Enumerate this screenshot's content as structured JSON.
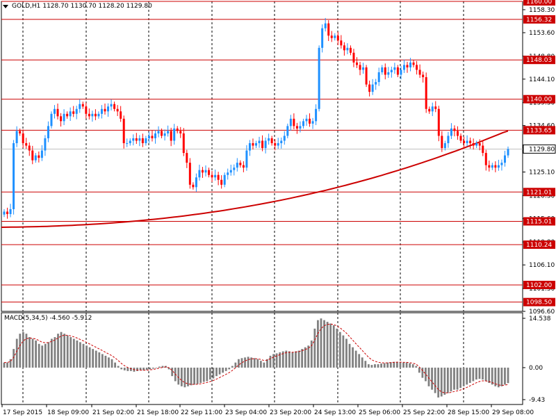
{
  "window": {
    "symbol_label": "GOLD,H1",
    "ohlc_text": "1128.70 1130.70 1128.20 1129.80",
    "macd_label": "MACD(5,34,5)",
    "macd_values_text": "-4.560 -5.912"
  },
  "chart_data": {
    "type": "candlestick",
    "title": "GOLD,H1 1128.70 1130.70 1128.20 1129.80",
    "price_axis": {
      "ylim": [
        1096.6,
        1160.0
      ],
      "ticks": [
        "1158.30",
        "1153.60",
        "1148.80",
        "1144.10",
        "1139.30",
        "1134.60",
        "1129.80",
        "1125.10",
        "1120.30",
        "1115.60",
        "1110.80",
        "1106.10",
        "1101.30",
        "1096.60"
      ]
    },
    "x_labels": [
      "17 Sep 2015",
      "18 Sep 09:00",
      "21 Sep 02:00",
      "21 Sep 18:00",
      "22 Sep 11:00",
      "23 Sep 04:00",
      "23 Sep 20:00",
      "24 Sep 13:00",
      "25 Sep 06:00",
      "25 Sep 22:00",
      "28 Sep 15:00",
      "29 Sep 08:00"
    ],
    "horizontal_levels": [
      {
        "label": "1160.00",
        "value": 1160.0
      },
      {
        "label": "1156.32",
        "value": 1156.32
      },
      {
        "label": "1148.03",
        "value": 1148.03
      },
      {
        "label": "1140.00",
        "value": 1140.0
      },
      {
        "label": "1133.65",
        "value": 1133.65
      },
      {
        "label": "1121.01",
        "value": 1121.01
      },
      {
        "label": "1115.01",
        "value": 1115.01
      },
      {
        "label": "1110.24",
        "value": 1110.24
      },
      {
        "label": "1102.00",
        "value": 1102.0
      },
      {
        "label": "1098.50",
        "value": 1098.5
      }
    ],
    "current_price": {
      "label": "1129.80",
      "value": 1129.8
    },
    "closes": [
      1117.0,
      1116.5,
      1117.5,
      1131.0,
      1133.5,
      1133.0,
      1131.0,
      1130.5,
      1129.5,
      1127.5,
      1128.5,
      1128.0,
      1129.5,
      1132.0,
      1134.5,
      1137.0,
      1138.0,
      1136.5,
      1135.5,
      1137.0,
      1136.5,
      1137.5,
      1137.0,
      1138.0,
      1139.0,
      1138.5,
      1137.0,
      1136.5,
      1137.0,
      1136.5,
      1137.0,
      1138.0,
      1137.5,
      1138.5,
      1139.0,
      1138.0,
      1137.5,
      1136.0,
      1131.0,
      1131.0,
      1131.5,
      1132.0,
      1131.5,
      1132.0,
      1131.0,
      1132.0,
      1132.5,
      1132.0,
      1133.0,
      1133.5,
      1132.5,
      1133.0,
      1133.5,
      1131.5,
      1134.0,
      1133.5,
      1133.0,
      1129.0,
      1127.0,
      1122.5,
      1122.0,
      1124.0,
      1125.5,
      1125.0,
      1125.5,
      1124.5,
      1124.0,
      1124.5,
      1123.5,
      1122.5,
      1124.5,
      1125.0,
      1125.5,
      1126.0,
      1127.0,
      1126.5,
      1126.0,
      1129.5,
      1131.0,
      1130.5,
      1131.0,
      1131.5,
      1130.0,
      1131.5,
      1132.0,
      1131.0,
      1130.5,
      1131.0,
      1131.5,
      1132.5,
      1134.5,
      1136.0,
      1134.5,
      1134.0,
      1134.5,
      1135.5,
      1136.0,
      1135.0,
      1135.5,
      1138.0,
      1150.5,
      1154.5,
      1155.5,
      1153.0,
      1152.5,
      1153.0,
      1152.0,
      1151.0,
      1150.0,
      1150.5,
      1149.5,
      1147.5,
      1147.0,
      1146.0,
      1146.5,
      1143.0,
      1141.5,
      1143.0,
      1143.5,
      1145.5,
      1146.5,
      1145.0,
      1145.5,
      1146.0,
      1146.5,
      1145.0,
      1146.0,
      1147.0,
      1146.5,
      1147.5,
      1147.0,
      1146.0,
      1145.0,
      1144.5,
      1138.0,
      1137.5,
      1138.5,
      1138.0,
      1132.5,
      1130.0,
      1131.0,
      1132.5,
      1134.0,
      1133.5,
      1132.5,
      1131.5,
      1131.0,
      1131.5,
      1131.0,
      1130.5,
      1131.0,
      1130.5,
      1129.0,
      1126.5,
      1126.0,
      1126.5,
      1126.0,
      1126.5,
      1127.0,
      1128.5,
      1129.8
    ],
    "moving_average": {
      "start_value": 1113.8,
      "end_value": 1133.5
    },
    "macd_indicator": {
      "ylim": [
        -9.43,
        14.538
      ],
      "ticks": [
        "14.538",
        "0.00",
        "-9.43"
      ],
      "histogram": [
        1.5,
        1.5,
        2.5,
        5.5,
        8.5,
        10.0,
        10.5,
        10.0,
        9.0,
        8.5,
        8.0,
        7.0,
        6.5,
        7.0,
        7.5,
        8.5,
        9.0,
        10.0,
        10.5,
        10.0,
        9.5,
        9.0,
        8.5,
        8.0,
        7.5,
        7.0,
        6.5,
        6.0,
        5.5,
        5.0,
        4.5,
        4.0,
        3.5,
        3.0,
        2.5,
        1.5,
        0.5,
        -0.5,
        -0.8,
        -1.0,
        -1.0,
        -1.2,
        -1.0,
        -0.8,
        -0.8,
        -0.7,
        -0.5,
        -0.3,
        0.0,
        0.3,
        0.5,
        0.5,
        -0.5,
        -2.5,
        -4.0,
        -5.0,
        -5.5,
        -5.8,
        -5.5,
        -5.2,
        -5.0,
        -4.8,
        -4.5,
        -4.2,
        -4.0,
        -3.5,
        -3.2,
        -2.5,
        -2.0,
        -1.5,
        -1.0,
        -0.5,
        0.5,
        1.5,
        2.5,
        2.8,
        3.0,
        3.2,
        3.0,
        2.8,
        2.5,
        2.0,
        1.5,
        2.5,
        3.5,
        4.0,
        4.2,
        4.5,
        4.8,
        5.0,
        4.8,
        4.5,
        4.8,
        5.0,
        5.5,
        6.0,
        6.5,
        8.0,
        11.5,
        14.0,
        14.5,
        14.0,
        13.5,
        13.0,
        12.5,
        11.5,
        10.5,
        9.5,
        8.5,
        7.0,
        6.0,
        5.0,
        4.0,
        3.0,
        2.0,
        1.0,
        0.8,
        1.0,
        1.0,
        1.2,
        1.3,
        1.5,
        1.6,
        1.7,
        1.7,
        1.6,
        1.5,
        1.5,
        1.3,
        1.0,
        0.5,
        -1.5,
        -3.0,
        -4.0,
        -5.5,
        -6.5,
        -7.5,
        -8.8,
        -8.5,
        -8.0,
        -7.5,
        -7.0,
        -6.5,
        -6.5,
        -6.0,
        -5.5,
        -5.0,
        -4.5,
        -4.0,
        -3.5,
        -3.3,
        -3.5,
        -4.0,
        -4.5,
        -5.0,
        -5.5,
        -5.8,
        -5.5,
        -5.0,
        -4.56
      ]
    },
    "colors": {
      "bull_candle": "#1e90ff",
      "bear_candle": "#ff0000",
      "level_line": "#cc0000",
      "level_label_bg": "#cc0000",
      "moving_average": "#cc0000",
      "macd_histogram": "#808080",
      "macd_signal": "#cc0000",
      "current_price_label_bg": "#ffffff"
    }
  }
}
